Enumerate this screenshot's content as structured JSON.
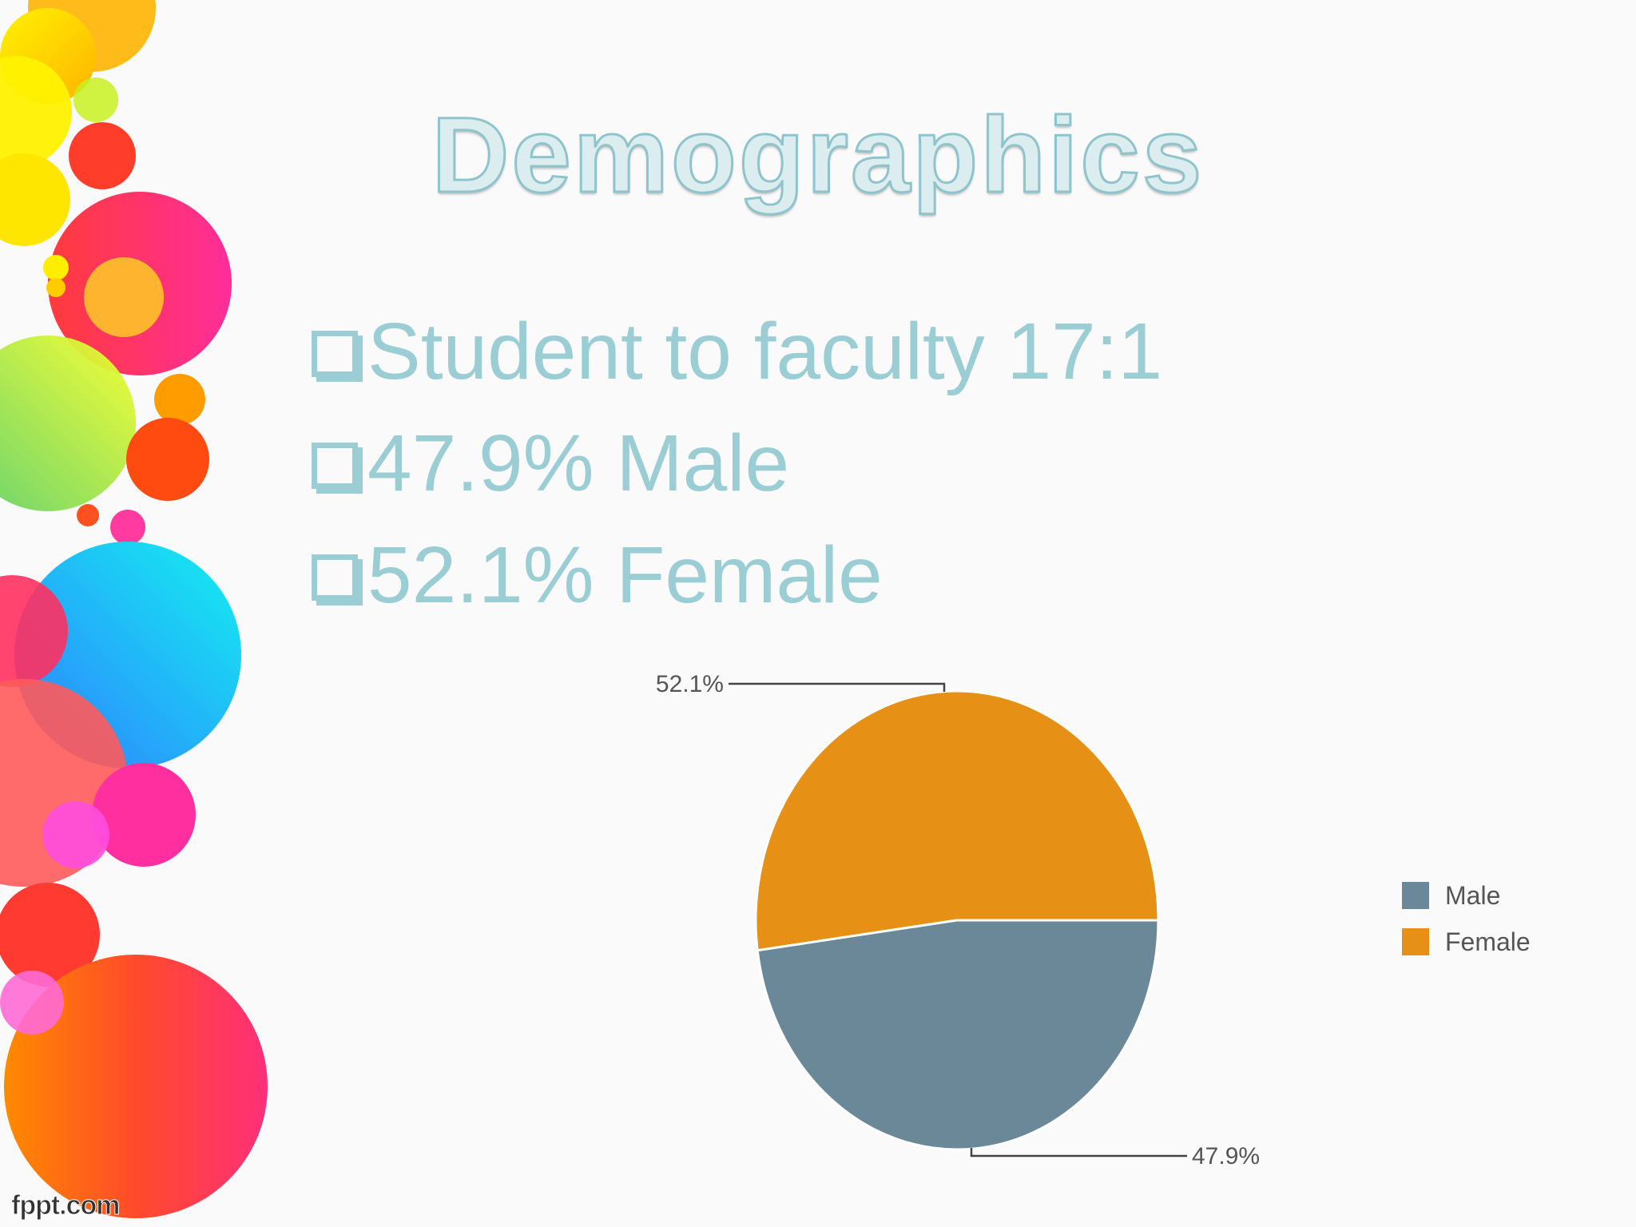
{
  "slide": {
    "title": "Demographics",
    "bullets": [
      "Student to faculty 17:1",
      "47.9% Male",
      "52.1% Female"
    ],
    "brand": "fppt.com"
  },
  "colors": {
    "text_accent": "#9bcdd4",
    "male": "#6b8898",
    "female": "#e69015"
  },
  "chart_data": {
    "type": "pie",
    "categories": [
      "Male",
      "Female"
    ],
    "values": [
      47.9,
      52.1
    ],
    "data_labels": [
      "47.9%",
      "52.1%"
    ],
    "colors": [
      "#6b8898",
      "#e69015"
    ],
    "legend": {
      "position": "right",
      "entries": [
        "Male",
        "Female"
      ]
    }
  }
}
